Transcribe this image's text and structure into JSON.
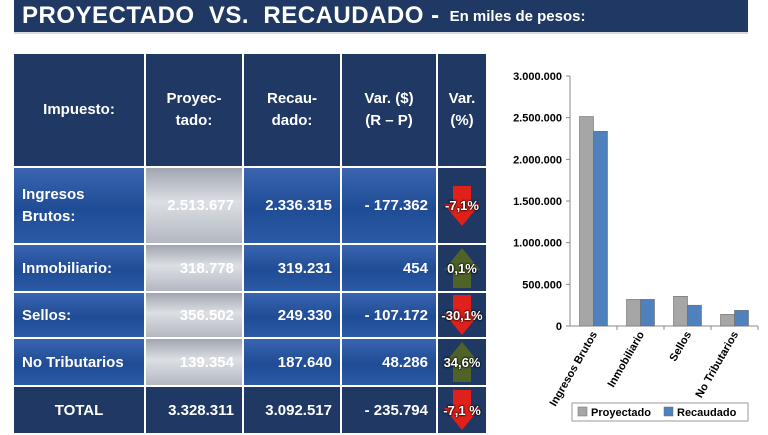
{
  "header": {
    "title": "PROYECTADO  VS.  RECAUDADO -",
    "subtitle": "En miles de pesos:"
  },
  "table": {
    "columns": [
      "Impuesto:",
      "Proyec-\ntado:",
      "Recau-\ndado:",
      "Var.  ($)\n(R – P)",
      "Var.\n(%)"
    ],
    "rows": [
      {
        "name": "Ingresos\nBrutos:",
        "proyectado": "2.513.677",
        "recaudado": "2.336.315",
        "var_abs": "- 177.362",
        "var_pct": "-7,1%",
        "direction": "down"
      },
      {
        "name": "Inmobiliario:",
        "proyectado": "318.778",
        "recaudado": "319.231",
        "var_abs": "454",
        "var_pct": "0,1%",
        "direction": "up"
      },
      {
        "name": "Sellos:",
        "proyectado": "356.502",
        "recaudado": "249.330",
        "var_abs": "- 107.172",
        "var_pct": "-30,1%",
        "direction": "down"
      },
      {
        "name": "No Tributarios",
        "proyectado": "139.354",
        "recaudado": "187.640",
        "var_abs": "48.286",
        "var_pct": "34,6%",
        "direction": "up"
      },
      {
        "name": "TOTAL",
        "proyectado": "3.328.311",
        "recaudado": "3.092.517",
        "var_abs": "- 235.794",
        "var_pct": "-7,1 %",
        "direction": "down"
      }
    ]
  },
  "colors": {
    "up": "#4f6228",
    "down": "#e0201a",
    "proyectado": "#a6a6a6",
    "recaudado": "#4f81bd"
  },
  "chart_data": {
    "type": "bar",
    "categories": [
      "Ingresos Brutos",
      "Inmobiliario",
      "Sellos",
      "No Tributarios"
    ],
    "series": [
      {
        "name": "Proyectado",
        "values": [
          2513677,
          318778,
          356502,
          139354
        ]
      },
      {
        "name": "Recaudado",
        "values": [
          2336315,
          319231,
          249330,
          187640
        ]
      }
    ],
    "yticks": [
      "0",
      "500.000",
      "1.000.000",
      "1.500.000",
      "2.000.000",
      "2.500.000",
      "3.000.000"
    ],
    "ylim": [
      0,
      3000000
    ],
    "legend": "bottom",
    "grid": false
  }
}
